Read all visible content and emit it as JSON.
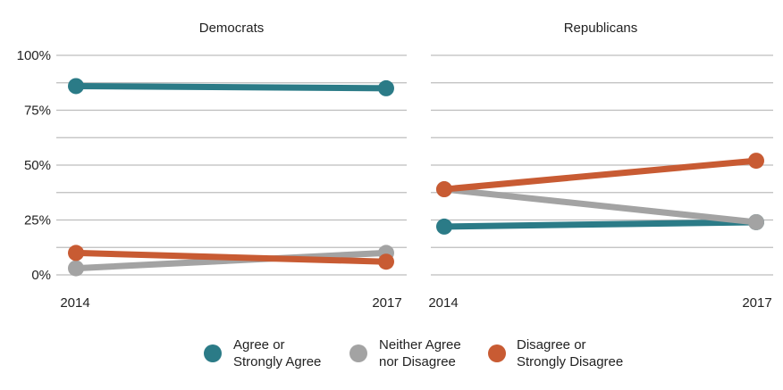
{
  "chart_data": {
    "type": "line",
    "y_tick_labels": [
      "100%",
      "75%",
      "50%",
      "25%",
      "0%"
    ],
    "y_ticks": [
      100,
      75,
      50,
      25,
      0
    ],
    "ylim": [
      0,
      100
    ],
    "grid": true,
    "legend_position": "bottom",
    "panels": [
      {
        "title": "Democrats",
        "x": [
          "2014",
          "2017"
        ],
        "series": [
          {
            "key": "agree",
            "values": [
              86,
              85
            ]
          },
          {
            "key": "neither",
            "values": [
              3,
              10
            ]
          },
          {
            "key": "disagree",
            "values": [
              10,
              6
            ]
          }
        ]
      },
      {
        "title": "Republicans",
        "x": [
          "2014",
          "2017"
        ],
        "series": [
          {
            "key": "agree",
            "values": [
              22,
              24
            ]
          },
          {
            "key": "neither",
            "values": [
              39,
              24
            ]
          },
          {
            "key": "disagree",
            "values": [
              39,
              52
            ]
          }
        ]
      }
    ],
    "legend": [
      {
        "key": "agree",
        "lines": [
          "Agree or",
          "Strongly Agree"
        ],
        "color": "#2b7b87"
      },
      {
        "key": "neither",
        "lines": [
          "Neither Agree",
          "nor Disagree"
        ],
        "color": "#a3a3a3"
      },
      {
        "key": "disagree",
        "lines": [
          "Disagree or",
          "Strongly Disagree"
        ],
        "color": "#c85b33"
      }
    ],
    "draw_order": [
      "agree",
      "neither",
      "disagree"
    ]
  }
}
